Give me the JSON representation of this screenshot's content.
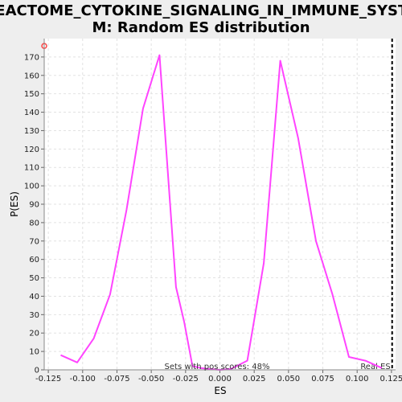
{
  "chart_data": {
    "type": "line",
    "title_line1": "REACTOME_CYTOKINE_SIGNALING_IN_IMMUNE_SYSTE",
    "title_line2": "M: Random ES distribution",
    "xlabel": "ES",
    "ylabel": "P(ES)",
    "xlim": [
      -0.128,
      0.128
    ],
    "ylim": [
      0,
      180
    ],
    "x_ticks": [
      -0.125,
      -0.1,
      -0.075,
      -0.05,
      -0.025,
      0.0,
      0.025,
      0.05,
      0.075,
      0.1,
      0.125
    ],
    "x_tick_labels": [
      "-0.125",
      "-0.100",
      "-0.075",
      "-0.050",
      "-0.025",
      "0.000",
      "0.025",
      "0.050",
      "0.075",
      "0.100",
      "0.125"
    ],
    "y_ticks": [
      0,
      10,
      20,
      30,
      40,
      50,
      60,
      70,
      80,
      90,
      100,
      110,
      120,
      130,
      140,
      150,
      160,
      170
    ],
    "y_tick_labels": [
      "0",
      "10",
      "20",
      "30",
      "40",
      "50",
      "60",
      "70",
      "80",
      "90",
      "100",
      "110",
      "120",
      "130",
      "140",
      "150",
      "160",
      "170"
    ],
    "grid": true,
    "series": [
      {
        "color": "#ff44ff",
        "x": [
          -0.116,
          -0.104,
          -0.092,
          -0.08,
          -0.068,
          -0.056,
          -0.044,
          -0.032,
          -0.026,
          -0.02,
          -0.014,
          -0.008,
          0.0,
          0.008,
          0.02,
          0.032,
          0.044,
          0.057,
          0.07,
          0.082,
          0.094,
          0.106,
          0.118
        ],
        "y": [
          8,
          4,
          17,
          41,
          87,
          142,
          171,
          45,
          26,
          2,
          1,
          0.5,
          0,
          0.5,
          5,
          58,
          168,
          126,
          70,
          41,
          7,
          5,
          1
        ]
      }
    ],
    "real_es": {
      "x": 0.1255,
      "label": "Real ES"
    },
    "outlier_point": {
      "x": -0.128,
      "y": 176
    },
    "annotation": "Sets with pos scores: 48%"
  }
}
